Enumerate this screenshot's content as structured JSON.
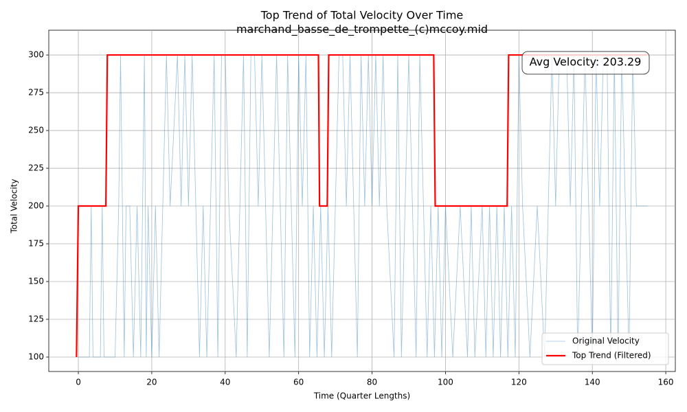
{
  "chart_data": {
    "type": "line",
    "title": "Top Trend of Total Velocity Over Time",
    "subtitle": "marchand_basse_de_trompette_(c)mccoy.mid",
    "xlabel": "Time (Quarter Lengths)",
    "ylabel": "Total Velocity",
    "annotation": "Avg Velocity: 203.29",
    "xlim": [
      -8.05,
      162.6
    ],
    "ylim": [
      90.45,
      316.4
    ],
    "xticks": [
      0,
      20,
      40,
      60,
      80,
      100,
      120,
      140,
      160
    ],
    "yticks": [
      100,
      125,
      150,
      175,
      200,
      225,
      250,
      275,
      300
    ],
    "grid": true,
    "legend": "lower right",
    "series": [
      {
        "name": "Original Velocity",
        "color": "#1f77b4",
        "x": [
          0,
          3,
          3.5,
          4,
          6,
          6.5,
          7,
          10,
          11,
          11.5,
          12,
          12.5,
          13,
          14,
          15,
          16,
          17,
          18,
          18.5,
          19,
          20,
          21,
          22,
          23,
          24,
          25,
          27,
          28,
          29,
          30,
          31,
          32,
          33,
          34,
          35,
          36,
          37,
          38,
          39,
          40,
          41,
          43,
          44,
          45,
          46,
          47,
          48,
          49,
          50,
          51,
          52,
          53,
          54,
          55,
          56,
          57,
          58,
          59,
          60,
          61,
          62,
          63,
          64,
          65,
          66,
          67,
          68,
          69,
          70,
          71,
          72,
          73,
          74,
          75,
          76,
          77,
          78,
          79,
          80,
          81,
          82,
          83,
          84,
          86,
          87,
          88,
          89,
          90,
          91,
          92,
          93,
          94,
          95,
          96,
          97,
          98,
          99,
          100,
          102,
          104,
          106,
          107,
          108,
          110,
          111,
          112,
          113,
          114,
          115,
          116,
          117,
          118,
          119,
          120,
          121,
          123,
          125,
          127,
          128,
          129,
          130,
          131,
          133,
          134,
          135,
          136,
          137,
          138,
          139,
          140,
          141,
          142,
          143,
          144,
          145,
          146,
          147,
          148,
          149,
          150,
          151,
          152,
          153,
          155
        ],
        "values": [
          100,
          100,
          200,
          100,
          100,
          200,
          100,
          100,
          200,
          300,
          200,
          100,
          200,
          200,
          100,
          200,
          100,
          300,
          100,
          200,
          100,
          200,
          100,
          200,
          300,
          200,
          300,
          200,
          300,
          200,
          300,
          200,
          100,
          200,
          100,
          200,
          300,
          100,
          300,
          300,
          200,
          100,
          200,
          300,
          100,
          300,
          300,
          200,
          300,
          200,
          100,
          200,
          300,
          200,
          100,
          300,
          200,
          100,
          300,
          200,
          300,
          100,
          200,
          100,
          200,
          100,
          200,
          100,
          200,
          300,
          300,
          200,
          300,
          200,
          100,
          300,
          200,
          300,
          200,
          300,
          200,
          300,
          200,
          100,
          300,
          100,
          200,
          300,
          200,
          100,
          300,
          200,
          100,
          200,
          100,
          200,
          100,
          200,
          100,
          200,
          100,
          200,
          100,
          200,
          100,
          200,
          100,
          200,
          100,
          200,
          100,
          200,
          100,
          300,
          200,
          100,
          200,
          100,
          200,
          300,
          200,
          300,
          300,
          200,
          300,
          100,
          200,
          300,
          200,
          100,
          300,
          200,
          300,
          300,
          100,
          300,
          100,
          300,
          200,
          100,
          300,
          200,
          200,
          200
        ]
      },
      {
        "name": "Top Trend (Filtered)",
        "color": "#ff0000",
        "x": [
          -0.5,
          0,
          7.5,
          7.9,
          65.4,
          65.7,
          67.8,
          68.2,
          96.8,
          97.2,
          116.8,
          117.2,
          155
        ],
        "values": [
          100,
          200,
          200,
          300,
          300,
          200,
          200,
          300,
          300,
          200,
          200,
          300,
          300
        ]
      }
    ]
  }
}
